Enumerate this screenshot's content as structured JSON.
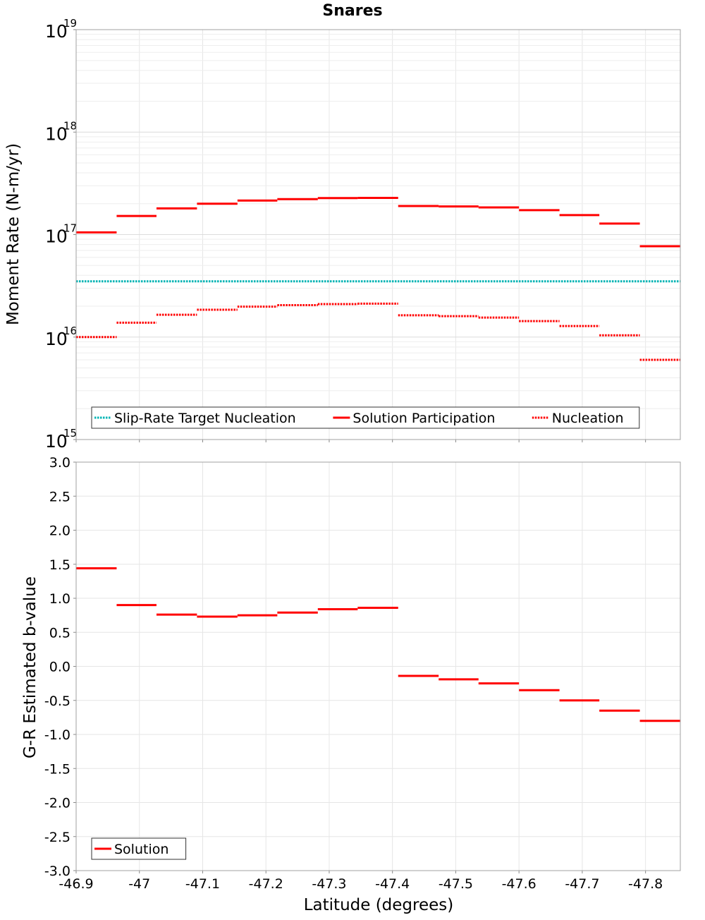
{
  "chart_data": {
    "title": "Snares",
    "xlabel": "Latitude (degrees)",
    "x_ticks": [
      "-46.9",
      "-47",
      "-47.1",
      "-47.2",
      "-47.3",
      "-47.4",
      "-47.5",
      "-47.6",
      "-47.7",
      "-47.8"
    ],
    "xlim": [
      -46.9,
      -47.855
    ],
    "panels": [
      {
        "type": "line",
        "ylabel": "Moment Rate (N-m/yr)",
        "y_scale": "log",
        "ylim": [
          1000000000000000.0,
          1e+19
        ],
        "y_ticks": [
          {
            "base": "10",
            "exp": "15"
          },
          {
            "base": "10",
            "exp": "16"
          },
          {
            "base": "10",
            "exp": "17"
          },
          {
            "base": "10",
            "exp": "18"
          },
          {
            "base": "10",
            "exp": "19"
          }
        ],
        "grid": true,
        "legend_position": "bottom-left",
        "legend": [
          "Slip-Rate Target Nucleation",
          "Solution Participation",
          "Nucleation"
        ],
        "series": [
          {
            "name": "Slip-Rate Target Nucleation",
            "color": "#00b4b4",
            "style": "dotted",
            "segments": [
              {
                "x0": -46.9,
                "x1": -47.855,
                "y": 3.5e+16
              }
            ]
          },
          {
            "name": "Solution Participation",
            "color": "#ff0000",
            "style": "solid",
            "segments": [
              {
                "x0": -46.9,
                "x1": -46.964,
                "y": 1.05e+17
              },
              {
                "x0": -46.964,
                "x1": -47.027,
                "y": 1.52e+17
              },
              {
                "x0": -47.027,
                "x1": -47.091,
                "y": 1.8e+17
              },
              {
                "x0": -47.091,
                "x1": -47.155,
                "y": 2e+17
              },
              {
                "x0": -47.155,
                "x1": -47.218,
                "y": 2.15e+17
              },
              {
                "x0": -47.218,
                "x1": -47.282,
                "y": 2.22e+17
              },
              {
                "x0": -47.282,
                "x1": -47.345,
                "y": 2.27e+17
              },
              {
                "x0": -47.345,
                "x1": -47.409,
                "y": 2.28e+17
              },
              {
                "x0": -47.409,
                "x1": -47.473,
                "y": 1.9e+17
              },
              {
                "x0": -47.473,
                "x1": -47.536,
                "y": 1.88e+17
              },
              {
                "x0": -47.536,
                "x1": -47.6,
                "y": 1.84e+17
              },
              {
                "x0": -47.6,
                "x1": -47.664,
                "y": 1.73e+17
              },
              {
                "x0": -47.664,
                "x1": -47.727,
                "y": 1.55e+17
              },
              {
                "x0": -47.727,
                "x1": -47.791,
                "y": 1.28e+17
              },
              {
                "x0": -47.791,
                "x1": -47.855,
                "y": 7.7e+16
              }
            ]
          },
          {
            "name": "Nucleation",
            "color": "#ff0000",
            "style": "dotted",
            "segments": [
              {
                "x0": -46.9,
                "x1": -46.964,
                "y": 1e+16
              },
              {
                "x0": -46.964,
                "x1": -47.027,
                "y": 1.38e+16
              },
              {
                "x0": -47.027,
                "x1": -47.091,
                "y": 1.65e+16
              },
              {
                "x0": -47.091,
                "x1": -47.155,
                "y": 1.85e+16
              },
              {
                "x0": -47.155,
                "x1": -47.218,
                "y": 1.98e+16
              },
              {
                "x0": -47.218,
                "x1": -47.282,
                "y": 2.05e+16
              },
              {
                "x0": -47.282,
                "x1": -47.345,
                "y": 2.1e+16
              },
              {
                "x0": -47.345,
                "x1": -47.409,
                "y": 2.12e+16
              },
              {
                "x0": -47.409,
                "x1": -47.473,
                "y": 1.63e+16
              },
              {
                "x0": -47.473,
                "x1": -47.536,
                "y": 1.6e+16
              },
              {
                "x0": -47.536,
                "x1": -47.6,
                "y": 1.55e+16
              },
              {
                "x0": -47.6,
                "x1": -47.664,
                "y": 1.43e+16
              },
              {
                "x0": -47.664,
                "x1": -47.727,
                "y": 1.28e+16
              },
              {
                "x0": -47.727,
                "x1": -47.791,
                "y": 1.04e+16
              },
              {
                "x0": -47.791,
                "x1": -47.855,
                "y": 6000000000000000.0
              }
            ]
          }
        ]
      },
      {
        "type": "line",
        "ylabel": "G-R Estimated b-value",
        "y_scale": "linear",
        "ylim": [
          -3.0,
          3.0
        ],
        "y_ticks": [
          "-3.0",
          "-2.5",
          "-2.0",
          "-1.5",
          "-1.0",
          "-0.5",
          "0.0",
          "0.5",
          "1.0",
          "1.5",
          "2.0",
          "2.5",
          "3.0"
        ],
        "grid": true,
        "legend_position": "bottom-left",
        "legend": [
          "Solution"
        ],
        "series": [
          {
            "name": "Solution",
            "color": "#ff0000",
            "style": "solid",
            "segments": [
              {
                "x0": -46.9,
                "x1": -46.964,
                "y": 1.44
              },
              {
                "x0": -46.964,
                "x1": -47.027,
                "y": 0.9
              },
              {
                "x0": -47.027,
                "x1": -47.091,
                "y": 0.76
              },
              {
                "x0": -47.091,
                "x1": -47.155,
                "y": 0.73
              },
              {
                "x0": -47.155,
                "x1": -47.218,
                "y": 0.75
              },
              {
                "x0": -47.218,
                "x1": -47.282,
                "y": 0.79
              },
              {
                "x0": -47.282,
                "x1": -47.345,
                "y": 0.84
              },
              {
                "x0": -47.345,
                "x1": -47.409,
                "y": 0.86
              },
              {
                "x0": -47.409,
                "x1": -47.473,
                "y": -0.14
              },
              {
                "x0": -47.473,
                "x1": -47.536,
                "y": -0.19
              },
              {
                "x0": -47.536,
                "x1": -47.6,
                "y": -0.25
              },
              {
                "x0": -47.6,
                "x1": -47.664,
                "y": -0.35
              },
              {
                "x0": -47.664,
                "x1": -47.727,
                "y": -0.5
              },
              {
                "x0": -47.727,
                "x1": -47.791,
                "y": -0.65
              },
              {
                "x0": -47.791,
                "x1": -47.855,
                "y": -0.8
              }
            ]
          }
        ]
      }
    ]
  }
}
